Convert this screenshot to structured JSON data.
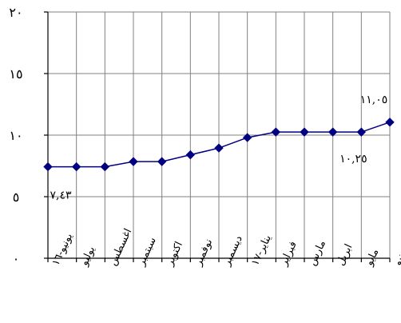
{
  "chart_data": {
    "type": "line",
    "title": "",
    "xlabel": "",
    "ylabel": "",
    "ylim": [
      0,
      20
    ],
    "grid": true,
    "y_ticks": [
      {
        "value": 0,
        "label": "٠"
      },
      {
        "value": 5,
        "label": "٥"
      },
      {
        "value": 10,
        "label": "١٠"
      },
      {
        "value": 15,
        "label": "١٥"
      },
      {
        "value": 20,
        "label": "٢٠"
      }
    ],
    "categories": [
      "يونيو-١٦",
      "يوليو",
      "اغسطس",
      "سبتمبر",
      "اكتوبر",
      "نوفمبر",
      "ديسمبر",
      "يناير-١٧",
      "فبراير",
      "مارس",
      "ابريل",
      "مايو",
      "يونيو"
    ],
    "series": [
      {
        "values": [
          7.43,
          7.43,
          7.43,
          7.85,
          7.85,
          8.4,
          8.95,
          9.8,
          10.25,
          10.25,
          10.25,
          10.25,
          11.05
        ]
      }
    ],
    "annotations": [
      {
        "text": "٧,٤٣",
        "point_index": 0
      },
      {
        "text": "١٠,٢٥",
        "point_index": 11
      },
      {
        "text": "١١,٠٥",
        "point_index": 12
      }
    ],
    "colors": {
      "series": "#000080",
      "grid": "#808080",
      "axis": "#000000"
    }
  }
}
